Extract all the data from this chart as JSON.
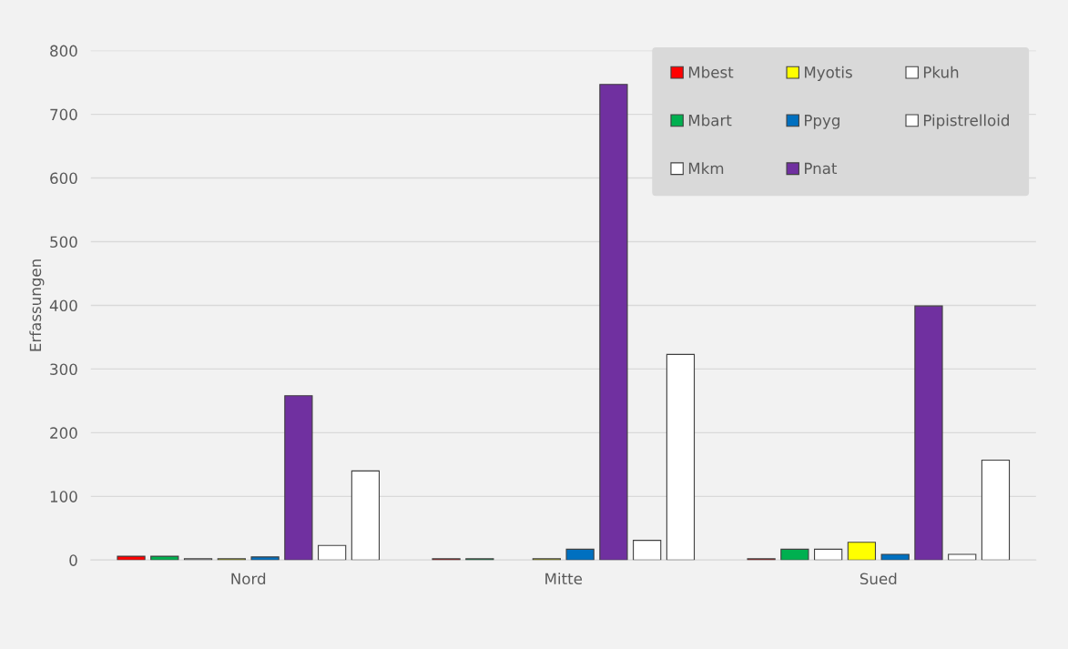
{
  "chart_data": {
    "type": "bar",
    "ylabel": "Erfassungen",
    "categories": [
      "Nord",
      "Mitte",
      "Sued"
    ],
    "series": [
      {
        "name": "Mbest",
        "color": "#ff0000",
        "values": [
          6,
          2,
          2
        ]
      },
      {
        "name": "Mbart",
        "color": "#00b050",
        "values": [
          6,
          2,
          17
        ]
      },
      {
        "name": "Mkm",
        "color": "#ffffff",
        "values": [
          2,
          0,
          17
        ]
      },
      {
        "name": "Myotis",
        "color": "#ffff00",
        "values": [
          2,
          2,
          28
        ]
      },
      {
        "name": "Ppyg",
        "color": "#0070c0",
        "values": [
          5,
          17,
          9
        ]
      },
      {
        "name": "Pnat",
        "color": "#7030a0",
        "values": [
          258,
          747,
          399
        ]
      },
      {
        "name": "Pkuh",
        "color": "#ffffff",
        "values": [
          23,
          31,
          9
        ]
      },
      {
        "name": "Pipistrelloid",
        "color": "#ffffff",
        "values": [
          140,
          323,
          157
        ]
      }
    ],
    "ylim": [
      0,
      800
    ],
    "yticks": [
      0,
      100,
      200,
      300,
      400,
      500,
      600,
      700,
      800
    ],
    "grid": "y",
    "legend": "top right"
  }
}
